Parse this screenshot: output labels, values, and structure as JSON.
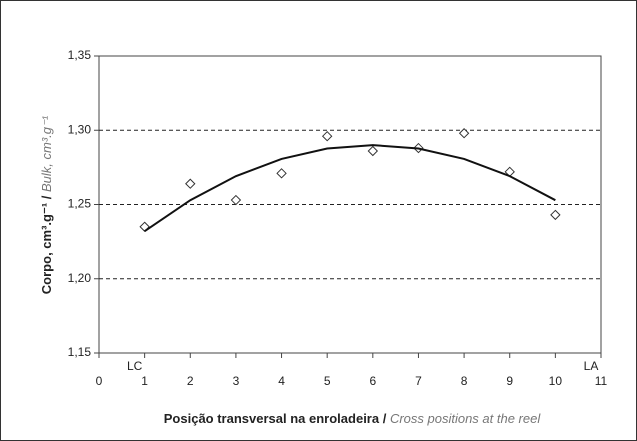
{
  "chart_data": {
    "type": "scatter",
    "xlabel": {
      "main": "Posição transversal na enroladeira / ",
      "italic": "Cross positions at the reel"
    },
    "ylabel": {
      "main": "Corpo, cm³.g⁻¹ / ",
      "italic": "Bulk, cm³.g⁻¹"
    },
    "annotations": [
      {
        "text": "LC",
        "x": 1
      },
      {
        "text": "LA",
        "x": 11
      }
    ],
    "x": [
      1,
      2,
      3,
      4,
      5,
      6,
      7,
      8,
      9,
      10
    ],
    "series": [
      {
        "kind": "points",
        "color": "#333333",
        "values": [
          1.235,
          1.264,
          1.253,
          1.271,
          1.296,
          1.286,
          1.288,
          1.298,
          1.272,
          1.243
        ]
      },
      {
        "kind": "trend",
        "color": "#111111",
        "values": [
          1.232,
          1.2529,
          1.2691,
          1.2807,
          1.2877,
          1.29,
          1.2877,
          1.2807,
          1.2691,
          1.2529
        ]
      }
    ],
    "xlim": [
      0,
      11
    ],
    "xticks": [
      0,
      1,
      2,
      3,
      4,
      5,
      6,
      7,
      8,
      9,
      10,
      11
    ],
    "ylim": [
      1.15,
      1.35
    ],
    "yticks": [
      {
        "value": 1.15,
        "label": "1,15"
      },
      {
        "value": 1.2,
        "label": "1,20"
      },
      {
        "value": 1.25,
        "label": "1,25"
      },
      {
        "value": 1.3,
        "label": "1,30"
      },
      {
        "value": 1.35,
        "label": "1,35"
      }
    ],
    "grid": true
  }
}
